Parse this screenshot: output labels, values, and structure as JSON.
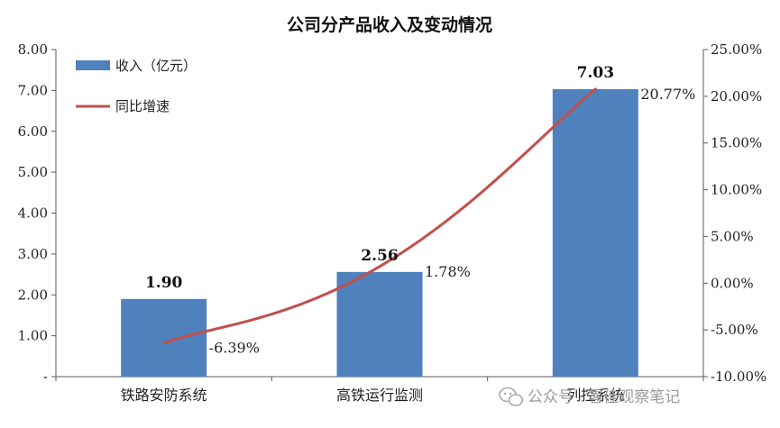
{
  "chart_data": {
    "type": "bar",
    "title": "公司分产品收入及变动情况",
    "categories": [
      "铁路安防系统",
      "高铁运行监测",
      "列控系统"
    ],
    "series": [
      {
        "name": "收入（亿元）",
        "type": "bar",
        "axis": "left",
        "values": [
          1.9,
          2.56,
          7.03
        ],
        "labels": [
          "1.90",
          "2.56",
          "7.03"
        ]
      },
      {
        "name": "同比增速",
        "type": "line",
        "axis": "right",
        "values": [
          -6.39,
          1.78,
          20.77
        ],
        "labels": [
          "-6.39%",
          "1.78%",
          "20.77%"
        ]
      }
    ],
    "y_left": {
      "ylim": [
        0,
        8
      ],
      "ticks": [
        "-",
        "1.00",
        "2.00",
        "3.00",
        "4.00",
        "5.00",
        "6.00",
        "7.00",
        "8.00"
      ]
    },
    "y_right": {
      "ylim": [
        -10,
        25
      ],
      "ticks": [
        "-10.00%",
        "-5.00%",
        "0.00%",
        "5.00%",
        "10.00%",
        "15.00%",
        "20.00%",
        "25.00%"
      ]
    },
    "legend_position": "top-left",
    "grid": false,
    "colors": {
      "bar": "#4f81bd",
      "line": "#c0504d",
      "axis": "#595959"
    }
  },
  "watermark": {
    "text": "公众号 · 畧佳观察笔记",
    "icon": "wechat-icon"
  }
}
